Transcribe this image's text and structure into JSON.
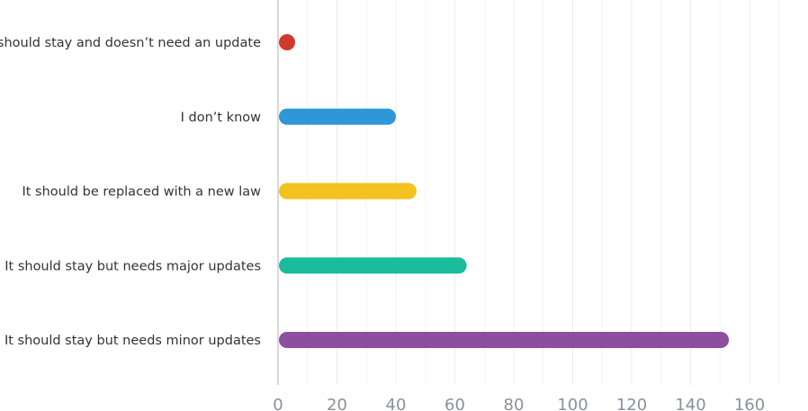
{
  "chart_data": {
    "type": "bar",
    "orientation": "horizontal",
    "title": "",
    "xlabel": "",
    "ylabel": "",
    "categories": [
      "It should stay and doesn’t need an update",
      "I don’t know",
      "It should be replaced with a new law",
      "It should stay but needs major updates",
      "It should stay but needs minor updates"
    ],
    "values": [
      3,
      40,
      47,
      64,
      153
    ],
    "colors": [
      "#d0392b",
      "#2e97d8",
      "#f2c21f",
      "#1bbc9b",
      "#8e4ea0"
    ],
    "xlim": [
      0,
      170
    ],
    "xticks": [
      0,
      20,
      40,
      60,
      80,
      100,
      120,
      140,
      160
    ],
    "xtick_labels": [
      "0",
      "20",
      "40",
      "60",
      "80",
      "100",
      "120",
      "140",
      "160"
    ],
    "grid": true,
    "legend": "none"
  }
}
